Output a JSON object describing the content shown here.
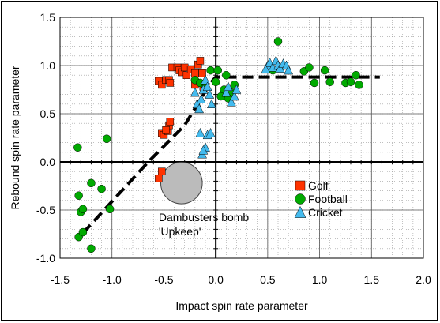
{
  "chart_data": {
    "type": "scatter",
    "title": "",
    "xlabel": "Impact spin rate parameter",
    "ylabel": "Rebound spin rate parameter",
    "xlim": [
      -1.5,
      2.0
    ],
    "ylim": [
      -1.0,
      1.5
    ],
    "x_ticks": [
      -1.5,
      -1.0,
      -0.5,
      0.0,
      0.5,
      1.0,
      1.5,
      2.0
    ],
    "x_tick_labels": [
      "-1.5",
      "-1.0",
      "-0.5",
      "0.0",
      "0.5",
      "1.0",
      "1.5",
      "2.0"
    ],
    "y_ticks": [
      -1.0,
      -0.5,
      0.0,
      0.5,
      1.0,
      1.5
    ],
    "y_tick_labels": [
      "-1.0",
      "-0.5",
      "0.0",
      "0.5",
      "1.0",
      "1.5"
    ],
    "grid": true,
    "legend_position": "lower-right inside",
    "series": [
      {
        "name": "Golf",
        "marker": "square",
        "color": "#ff3300",
        "points": [
          [
            -0.55,
            0.84
          ],
          [
            -0.52,
            0.8
          ],
          [
            -0.48,
            0.85
          ],
          [
            -0.45,
            0.85
          ],
          [
            -0.44,
            0.82
          ],
          [
            -0.42,
            0.98
          ],
          [
            -0.37,
            0.98
          ],
          [
            -0.35,
            0.95
          ],
          [
            -0.33,
            0.93
          ],
          [
            -0.3,
            0.98
          ],
          [
            -0.28,
            0.9
          ],
          [
            -0.24,
            0.96
          ],
          [
            -0.2,
            0.92
          ],
          [
            -0.17,
            1.01
          ],
          [
            -0.15,
            1.05
          ],
          [
            -0.13,
            0.92
          ],
          [
            -0.12,
            0.78
          ],
          [
            -0.2,
            0.8
          ],
          [
            -0.52,
            0.3
          ],
          [
            -0.5,
            0.28
          ],
          [
            -0.46,
            0.32
          ],
          [
            -0.45,
            0.38
          ],
          [
            -0.44,
            0.42
          ],
          [
            -0.48,
            0.33
          ],
          [
            -0.55,
            -0.17
          ],
          [
            -0.52,
            -0.1
          ]
        ]
      },
      {
        "name": "Football",
        "marker": "circle",
        "color": "#00aa00",
        "points": [
          [
            -1.33,
            0.15
          ],
          [
            -1.05,
            0.24
          ],
          [
            -1.32,
            -0.35
          ],
          [
            -1.3,
            -0.52
          ],
          [
            -1.28,
            -0.49
          ],
          [
            -1.2,
            -0.22
          ],
          [
            -1.1,
            -0.28
          ],
          [
            -1.02,
            -0.49
          ],
          [
            -1.32,
            -0.78
          ],
          [
            -1.28,
            -0.73
          ],
          [
            -1.2,
            -0.9
          ],
          [
            -0.2,
            0.85
          ],
          [
            -0.15,
            0.82
          ],
          [
            -0.1,
            0.78
          ],
          [
            -0.05,
            0.95
          ],
          [
            0.0,
            0.83
          ],
          [
            0.02,
            0.95
          ],
          [
            0.08,
            0.75
          ],
          [
            0.1,
            0.9
          ],
          [
            0.15,
            0.72
          ],
          [
            0.18,
            0.8
          ],
          [
            0.05,
            0.68
          ],
          [
            0.12,
            0.66
          ],
          [
            0.55,
            0.95
          ],
          [
            0.6,
            1.25
          ],
          [
            0.85,
            0.94
          ],
          [
            0.9,
            0.98
          ],
          [
            0.95,
            0.82
          ],
          [
            1.05,
            0.95
          ],
          [
            1.1,
            0.83
          ],
          [
            1.25,
            0.82
          ],
          [
            1.3,
            0.83
          ],
          [
            1.35,
            0.9
          ],
          [
            1.38,
            0.8
          ]
        ]
      },
      {
        "name": "Cricket",
        "marker": "triangle",
        "color": "#44bbee",
        "points": [
          [
            -0.2,
            0.72
          ],
          [
            -0.18,
            0.6
          ],
          [
            -0.16,
            0.55
          ],
          [
            -0.14,
            0.65
          ],
          [
            -0.12,
            0.75
          ],
          [
            -0.1,
            0.85
          ],
          [
            -0.08,
            0.78
          ],
          [
            -0.06,
            0.7
          ],
          [
            -0.04,
            0.6
          ],
          [
            -0.15,
            0.3
          ],
          [
            -0.1,
            0.15
          ],
          [
            -0.08,
            0.28
          ],
          [
            -0.13,
            0.08
          ],
          [
            -0.05,
            0.3
          ],
          [
            -0.12,
            0.12
          ],
          [
            0.1,
            0.72
          ],
          [
            0.12,
            0.78
          ],
          [
            0.15,
            0.62
          ],
          [
            0.18,
            0.68
          ],
          [
            0.2,
            0.75
          ],
          [
            0.5,
            1.0
          ],
          [
            0.52,
            1.03
          ],
          [
            0.55,
            0.98
          ],
          [
            0.58,
            1.05
          ],
          [
            0.6,
            1.0
          ],
          [
            0.62,
            0.97
          ],
          [
            0.65,
            1.02
          ],
          [
            0.68,
            1.0
          ],
          [
            0.7,
            0.95
          ],
          [
            0.48,
            0.96
          ]
        ]
      }
    ],
    "trend_line": {
      "style": "dashed",
      "points": [
        [
          -1.28,
          -0.74
        ],
        [
          -0.65,
          0.0
        ],
        [
          -0.3,
          0.38
        ],
        [
          -0.05,
          0.82
        ],
        [
          0.0,
          0.88
        ],
        [
          1.58,
          0.88
        ]
      ]
    },
    "annotation": {
      "text_line1": "Dambusters bomb",
      "text_line2": "'Upkeep'",
      "x": -0.33,
      "y": -0.22,
      "radius_x": 0.2,
      "fill": "#bbbbbb"
    }
  }
}
